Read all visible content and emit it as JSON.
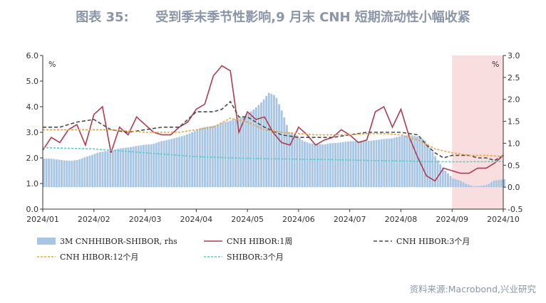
{
  "title": "图表 35:      受到季末季节性影响,9 月末 CNH 短期流动性小幅收紧",
  "source": "资料来源:Macrobond,兴业研究",
  "colors": {
    "bar": "#a8c6e4",
    "line_1w": "#b03a4e",
    "line_3m": "#4a4a4a",
    "line_12m": "#f0a040",
    "line_shibor": "#55cccc",
    "shade": "#f8dede"
  },
  "chart_data": {
    "type": "bar+line",
    "left_axis": {
      "unit": "%",
      "ylim": [
        0,
        6
      ],
      "ticks": [
        "0.0",
        "1.0",
        "2.0",
        "3.0",
        "4.0",
        "5.0",
        "6.0"
      ]
    },
    "right_axis": {
      "unit": "%",
      "ylim": [
        -0.5,
        3.0
      ],
      "ticks": [
        "-0.5",
        "0.0",
        "0.5",
        "1.0",
        "1.5",
        "2.0",
        "2.5",
        "3.0"
      ]
    },
    "x_ticks": [
      "2024/01",
      "2024/02",
      "2024/03",
      "2024/04",
      "2024/05",
      "2024/06",
      "2024/07",
      "2024/08",
      "2024/09",
      "2024/10"
    ],
    "shaded_range": [
      "2024/09",
      "2024/10"
    ],
    "legend": [
      {
        "label": "3M CNHHIBOR-SHIBOR, rhs",
        "style": "bar"
      },
      {
        "label": "CNH HIBOR:1周",
        "style": "line_1w"
      },
      {
        "label": "CNH HIBOR:3个月",
        "style": "line_3m"
      },
      {
        "label": "CNH HIBOR:12个月",
        "style": "line_12m"
      },
      {
        "label": "SHIBOR:3个月",
        "style": "line_shibor"
      }
    ],
    "series": [
      {
        "name": "3M CNHHIBOR-SHIBOR, rhs",
        "axis": "right",
        "x": [
          0,
          4,
          8,
          12,
          16,
          20,
          24,
          28,
          32,
          36,
          40,
          44,
          48,
          52,
          56,
          60,
          64,
          68,
          72,
          76,
          80,
          84,
          88,
          92,
          96,
          100,
          104,
          108,
          112,
          116,
          120,
          124,
          128,
          132,
          136,
          140,
          144,
          148,
          152,
          156,
          160,
          164,
          168,
          172,
          176,
          180,
          184,
          188,
          192,
          196,
          200,
          204,
          208,
          212,
          216,
          220,
          224,
          228,
          232,
          236,
          240,
          244,
          248,
          252,
          256,
          260,
          264,
          270
        ],
        "values": [
          0.65,
          0.65,
          0.63,
          0.61,
          0.6,
          0.62,
          0.68,
          0.73,
          0.79,
          0.82,
          0.84,
          0.88,
          0.9,
          0.92,
          0.95,
          0.97,
          0.98,
          1.04,
          1.07,
          1.11,
          1.15,
          1.2,
          1.27,
          1.35,
          1.38,
          1.4,
          1.46,
          1.5,
          1.55,
          1.6,
          1.68,
          1.8,
          1.95,
          2.15,
          2.08,
          1.7,
          1.25,
          1.2,
          1.05,
          1.0,
          0.99,
          0.97,
          1.0,
          1.01,
          1.03,
          1.05,
          1.05,
          1.05,
          1.06,
          1.08,
          1.1,
          1.11,
          1.15,
          1.18,
          1.18,
          1.15,
          1.05,
          0.8,
          0.55,
          0.35,
          0.2,
          0.15,
          0.07,
          0.02,
          0.03,
          0.05,
          0.15,
          0.18
        ]
      },
      {
        "name": "CNH HIBOR:1周",
        "axis": "left",
        "x": [
          0,
          5,
          10,
          15,
          20,
          25,
          30,
          35,
          40,
          45,
          50,
          55,
          60,
          65,
          70,
          75,
          80,
          85,
          90,
          95,
          100,
          105,
          110,
          115,
          120,
          125,
          130,
          135,
          140,
          145,
          150,
          155,
          160,
          165,
          170,
          175,
          180,
          185,
          190,
          195,
          200,
          205,
          210,
          215,
          220,
          225,
          230,
          235,
          240,
          245,
          250,
          255,
          260,
          265,
          270
        ],
        "values": [
          2.3,
          2.8,
          2.6,
          3.1,
          3.3,
          2.5,
          3.7,
          4.0,
          2.2,
          3.2,
          2.9,
          3.6,
          3.3,
          3.0,
          2.9,
          2.9,
          3.2,
          3.4,
          3.9,
          4.1,
          5.2,
          5.6,
          5.4,
          3.0,
          3.8,
          3.5,
          3.6,
          3.0,
          2.6,
          2.5,
          3.2,
          2.9,
          2.5,
          2.7,
          2.8,
          3.1,
          2.9,
          2.6,
          2.7,
          3.8,
          4.0,
          3.2,
          3.9,
          2.8,
          2.0,
          1.3,
          1.1,
          1.6,
          1.5,
          1.4,
          1.4,
          1.6,
          1.6,
          1.8,
          2.1
        ]
      },
      {
        "name": "CNH HIBOR:3个月",
        "axis": "left",
        "x": [
          0,
          10,
          20,
          30,
          40,
          50,
          60,
          70,
          80,
          90,
          100,
          105,
          110,
          115,
          120,
          130,
          140,
          150,
          160,
          170,
          180,
          190,
          200,
          210,
          220,
          225,
          230,
          235,
          240,
          245,
          250,
          255,
          260,
          265,
          270
        ],
        "values": [
          3.2,
          3.2,
          3.4,
          3.5,
          3.1,
          3.0,
          3.1,
          3.2,
          3.2,
          3.8,
          3.8,
          3.9,
          4.2,
          3.6,
          3.6,
          3.2,
          2.9,
          2.8,
          2.8,
          2.8,
          2.9,
          3.0,
          3.0,
          3.0,
          2.9,
          2.5,
          2.2,
          2.0,
          2.1,
          2.1,
          2.1,
          2.0,
          2.0,
          1.9,
          2.1
        ]
      },
      {
        "name": "CNH HIBOR:12个月",
        "axis": "left",
        "x": [
          0,
          20,
          40,
          60,
          80,
          100,
          110,
          120,
          130,
          140,
          150,
          160,
          170,
          180,
          190,
          200,
          210,
          220,
          230,
          240,
          250,
          260,
          270
        ],
        "values": [
          3.1,
          3.1,
          3.1,
          3.0,
          3.0,
          3.2,
          3.55,
          3.4,
          3.1,
          3.0,
          2.95,
          2.9,
          2.9,
          2.9,
          2.95,
          2.95,
          2.9,
          2.7,
          2.35,
          2.2,
          2.1,
          2.1,
          2.05
        ]
      },
      {
        "name": "SHIBOR:3个月",
        "axis": "left",
        "x": [
          0,
          30,
          60,
          90,
          110,
          130,
          150,
          170,
          190,
          210,
          230,
          250,
          270
        ],
        "values": [
          2.4,
          2.35,
          2.2,
          2.05,
          2.0,
          1.97,
          1.95,
          1.93,
          1.9,
          1.88,
          1.85,
          1.85,
          1.86
        ]
      }
    ]
  }
}
